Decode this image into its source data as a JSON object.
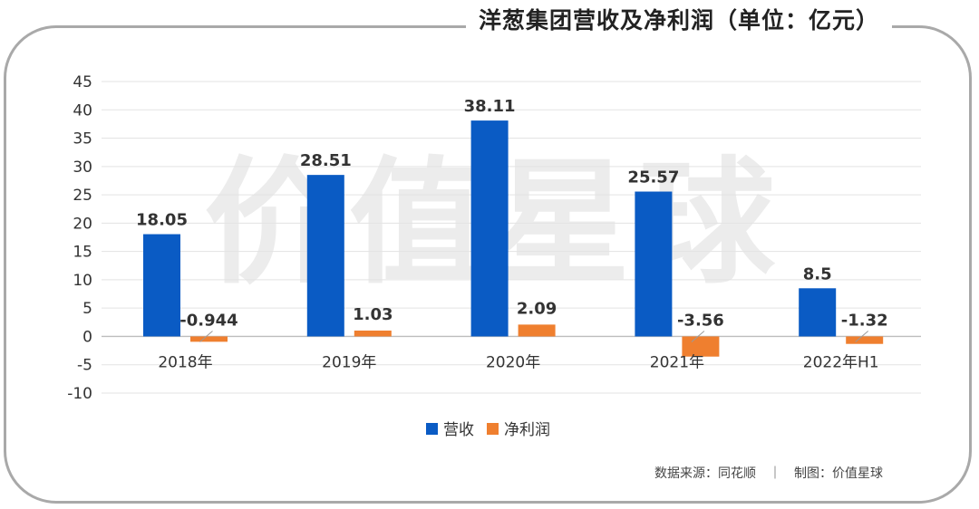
{
  "title": "洋葱集团营收及净利润（单位：亿元）",
  "source": "数据来源：同花顺　｜　制图：价值星球",
  "watermark": "价值星球",
  "chart_data": {
    "type": "bar",
    "title": "洋葱集团营收及净利润（单位：亿元）",
    "categories": [
      "2018年",
      "2019年",
      "2020年",
      "2021年",
      "2022年H1"
    ],
    "series": [
      {
        "name": "营收",
        "color": "#0a5bc4",
        "values": [
          18.05,
          28.51,
          38.11,
          25.57,
          8.5
        ],
        "labels": [
          "18.05",
          "28.51",
          "38.11",
          "25.57",
          "8.5"
        ]
      },
      {
        "name": "净利润",
        "color": "#ef7f2f",
        "values": [
          -0.944,
          1.03,
          2.09,
          -3.56,
          -1.32
        ],
        "labels": [
          "-0.944",
          "1.03",
          "2.09",
          "-3.56",
          "-1.32"
        ]
      }
    ],
    "ylim": [
      -10,
      45
    ],
    "yticks": [
      45,
      40,
      35,
      30,
      25,
      20,
      15,
      10,
      5,
      0,
      -5,
      -10
    ],
    "grid": true,
    "legend": "bottom-center"
  }
}
